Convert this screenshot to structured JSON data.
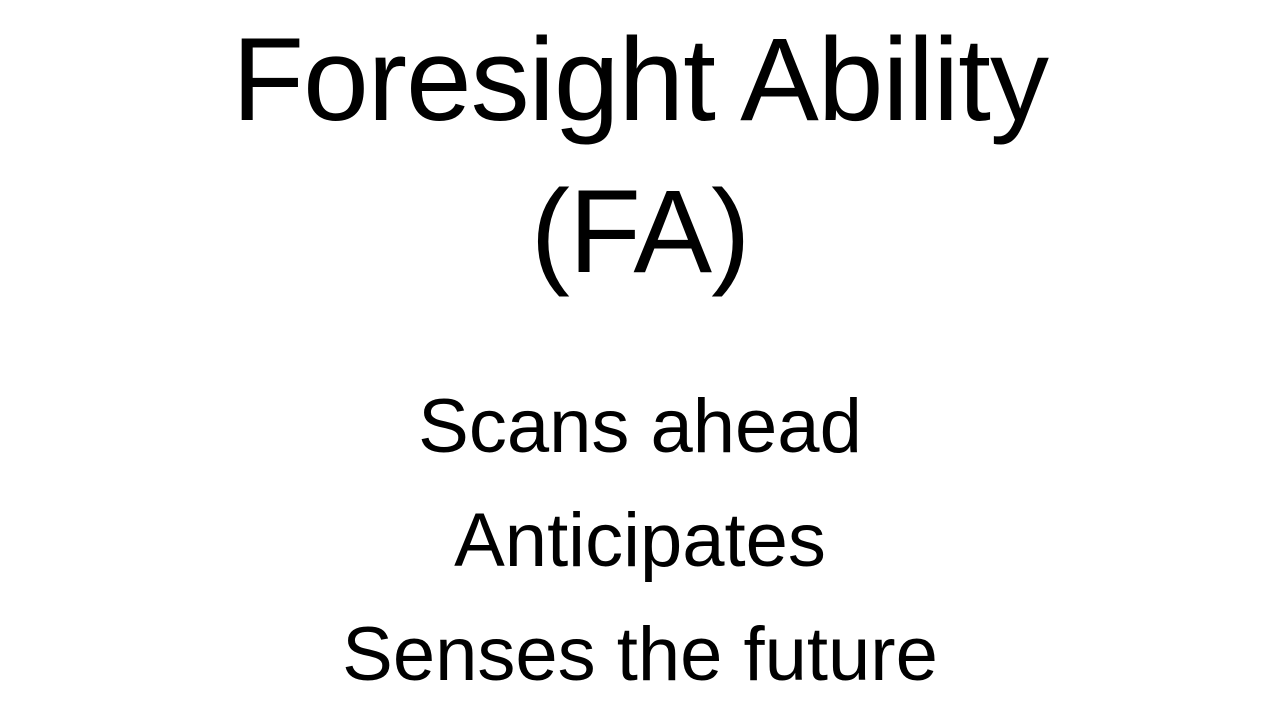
{
  "slide": {
    "title_line1": "Foresight Ability",
    "title_line2": "(FA)",
    "points": [
      "Scans ahead",
      "Anticipates",
      "Senses the future"
    ]
  }
}
